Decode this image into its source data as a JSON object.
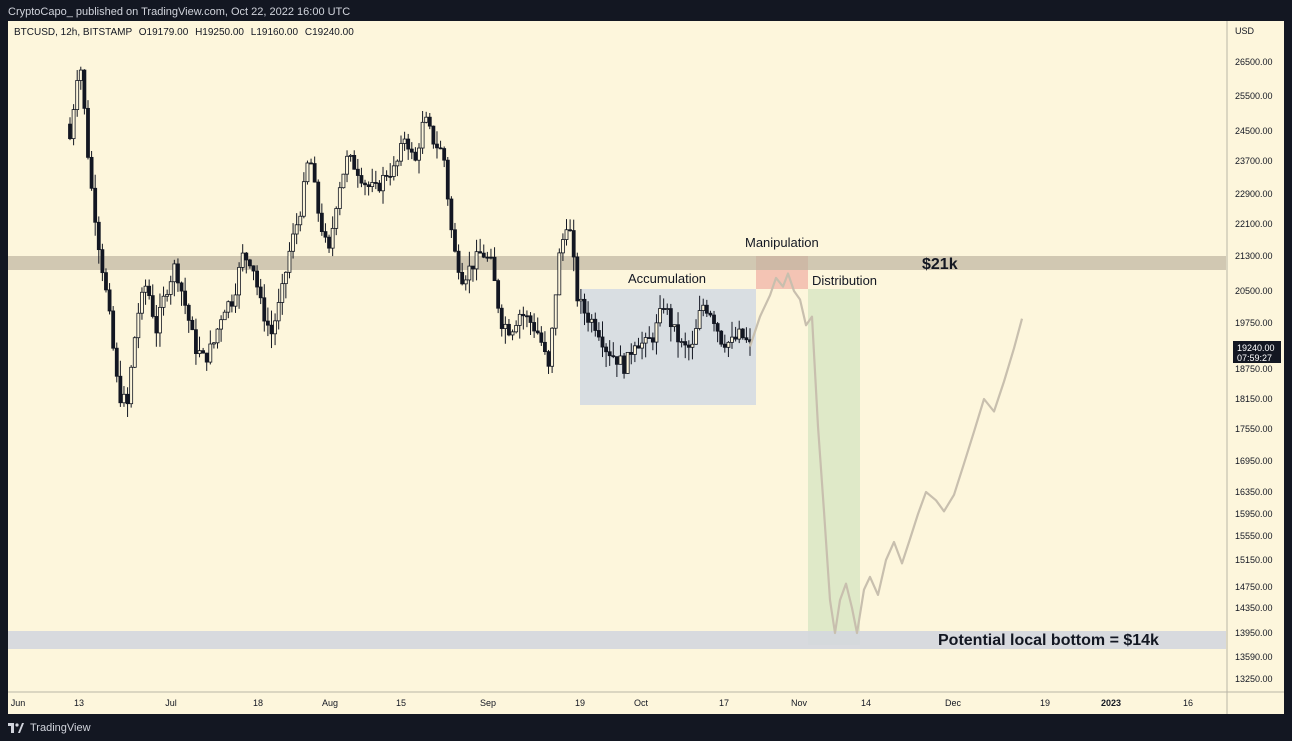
{
  "publish_line": "CryptoCapo_ published on TradingView.com, Oct 22, 2022 16:00 UTC",
  "footer_brand": "TradingView",
  "ohlc": {
    "symbol": "BTCUSD, 12h, BITSTAMP",
    "open": "O19179.00",
    "high": "H19250.00",
    "low": "L19160.00",
    "close": "C19240.00"
  },
  "chart_data": {
    "type": "candlestick",
    "currency_label": "USD",
    "y_tick_labels": [
      "26500.00",
      "25500.00",
      "24500.00",
      "23700.00",
      "22900.00",
      "22100.00",
      "21300.00",
      "20500.00",
      "19750.00",
      "18750.00",
      "18150.00",
      "17550.00",
      "16950.00",
      "16350.00",
      "15950.00",
      "15550.00",
      "15150.00",
      "14750.00",
      "14350.00",
      "13950.00",
      "13590.00",
      "13250.00"
    ],
    "x_tick_labels": [
      "Jun",
      "13",
      "Jul",
      "18",
      "Aug",
      "15",
      "Sep",
      "19",
      "Oct",
      "17",
      "Nov",
      "14",
      "Dec",
      "19",
      "2023",
      "16"
    ],
    "last_price": "19240.00",
    "countdown": "07:59:27",
    "annotations": {
      "accumulation": "Accumulation",
      "manipulation": "Manipulation",
      "distribution": "Distribution",
      "level_21k": "$21k",
      "bottom": "Potential local bottom = $14k"
    },
    "zones": {
      "resistance_band": [
        20900,
        21300
      ],
      "bottom_band": [
        13800,
        14050
      ],
      "accumulation_box": [
        18050,
        20450
      ],
      "manipulation_box": [
        20450,
        21300
      ],
      "distribution_box": [
        13850,
        20450
      ]
    },
    "series": [
      {
        "kind": "candles",
        "close_path": [
          24300,
          26700,
          23500,
          21600,
          20100,
          18300,
          18000,
          19900,
          20700,
          19600,
          20500,
          21100,
          20200,
          19250,
          18950,
          19300,
          20100,
          20300,
          21300,
          21200,
          20100,
          19500,
          20300,
          21500,
          22400,
          23900,
          22300,
          21300,
          23000,
          23800,
          23500,
          23100,
          23000,
          23400,
          23500,
          24400,
          23600,
          24900,
          24200,
          23900,
          21500,
          20800,
          21100,
          21400,
          21100,
          19800,
          19600,
          20000,
          19800,
          19500,
          18700,
          21200,
          22300,
          20300,
          19900,
          19700,
          19200,
          19000,
          18800,
          19400,
          19250,
          19500,
          20200,
          19600,
          19200,
          19200,
          20200,
          20000,
          19400,
          19300,
          19500,
          19240
        ]
      },
      {
        "kind": "projection",
        "points": [
          [
            0,
            19240
          ],
          [
            1,
            19900
          ],
          [
            2,
            20400
          ],
          [
            2.6,
            20800
          ],
          [
            3.3,
            20600
          ],
          [
            3.8,
            20900
          ],
          [
            4.4,
            20500
          ],
          [
            5,
            20300
          ],
          [
            5.6,
            19700
          ],
          [
            6.2,
            19900
          ],
          [
            6.8,
            17600
          ],
          [
            7.4,
            16000
          ],
          [
            8,
            14500
          ],
          [
            8.5,
            13950
          ],
          [
            9,
            14500
          ],
          [
            9.6,
            14800
          ],
          [
            10.2,
            14350
          ],
          [
            10.7,
            13950
          ],
          [
            11.4,
            14700
          ],
          [
            12,
            14900
          ],
          [
            12.8,
            14600
          ],
          [
            13.6,
            15150
          ],
          [
            14.4,
            15450
          ],
          [
            15.2,
            15100
          ],
          [
            16,
            15500
          ],
          [
            16.8,
            15950
          ],
          [
            17.6,
            16350
          ],
          [
            18.6,
            16200
          ],
          [
            19.4,
            16000
          ],
          [
            20.4,
            16300
          ],
          [
            21.4,
            16900
          ],
          [
            22.4,
            17500
          ],
          [
            23.4,
            18150
          ],
          [
            24.4,
            17900
          ],
          [
            25.4,
            18500
          ],
          [
            26.4,
            19200
          ],
          [
            27.2,
            19850
          ]
        ]
      }
    ]
  }
}
